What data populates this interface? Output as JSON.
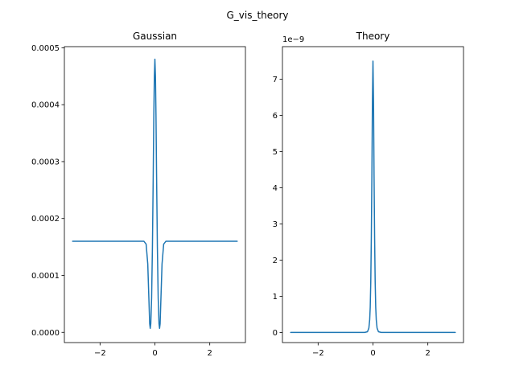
{
  "figure_title": "G_vis_theory",
  "chart_data": [
    {
      "type": "line",
      "title": "Gaussian",
      "xlabel": "",
      "ylabel": "",
      "xlim": [
        -3.3,
        3.3
      ],
      "ylim": [
        -1.8e-05,
        0.000502
      ],
      "xticks": [
        -2,
        0,
        2
      ],
      "xtick_labels": [
        "−2",
        "0",
        "2"
      ],
      "yticks": [
        0,
        0.0001,
        0.0002,
        0.0003,
        0.0004,
        0.0005
      ],
      "ytick_labels": [
        "0.0000",
        "0.0001",
        "0.0002",
        "0.0003",
        "0.0004",
        "0.0005"
      ],
      "offset_label": "",
      "grid": false,
      "series": [
        {
          "color": "#1f77b4",
          "x": [
            -3,
            -0.4,
            -0.32,
            -0.26,
            -0.22,
            -0.19,
            -0.17,
            -0.15,
            -0.12,
            -0.09,
            -0.06,
            -0.04,
            -0.02,
            0,
            0.02,
            0.04,
            0.06,
            0.09,
            0.12,
            0.15,
            0.17,
            0.19,
            0.22,
            0.26,
            0.32,
            0.4,
            3
          ],
          "y": [
            0.00016,
            0.00016,
            0.000155,
            0.00012,
            6e-05,
            1.5e-05,
            7e-06,
            1.5e-05,
            6e-05,
            0.00015,
            0.00028,
            0.00038,
            0.00045,
            0.00048,
            0.00045,
            0.00038,
            0.00028,
            0.00015,
            6e-05,
            1.5e-05,
            7e-06,
            1.5e-05,
            6e-05,
            0.00012,
            0.000155,
            0.00016,
            0.00016
          ]
        }
      ]
    },
    {
      "type": "line",
      "title": "Theory",
      "xlabel": "",
      "ylabel": "",
      "xlim": [
        -3.3,
        3.3
      ],
      "ylim": [
        -0.28,
        7.9
      ],
      "xticks": [
        -2,
        0,
        2
      ],
      "xtick_labels": [
        "−2",
        "0",
        "2"
      ],
      "yticks": [
        0,
        1,
        2,
        3,
        4,
        5,
        6,
        7
      ],
      "ytick_labels": [
        "0",
        "1",
        "2",
        "3",
        "4",
        "5",
        "6",
        "7"
      ],
      "offset_label": "1e−9",
      "grid": false,
      "series": [
        {
          "color": "#1f77b4",
          "x": [
            -3,
            -0.3,
            -0.2,
            -0.15,
            -0.12,
            -0.1,
            -0.08,
            -0.06,
            -0.04,
            -0.02,
            0,
            0.02,
            0.04,
            0.06,
            0.08,
            0.1,
            0.12,
            0.15,
            0.2,
            0.3,
            3
          ],
          "y": [
            0,
            0,
            0.02,
            0.12,
            0.35,
            0.7,
            1.4,
            2.6,
            4.3,
            6.4,
            7.5,
            6.4,
            4.3,
            2.6,
            1.4,
            0.7,
            0.35,
            0.12,
            0.02,
            0,
            0
          ]
        }
      ]
    }
  ]
}
